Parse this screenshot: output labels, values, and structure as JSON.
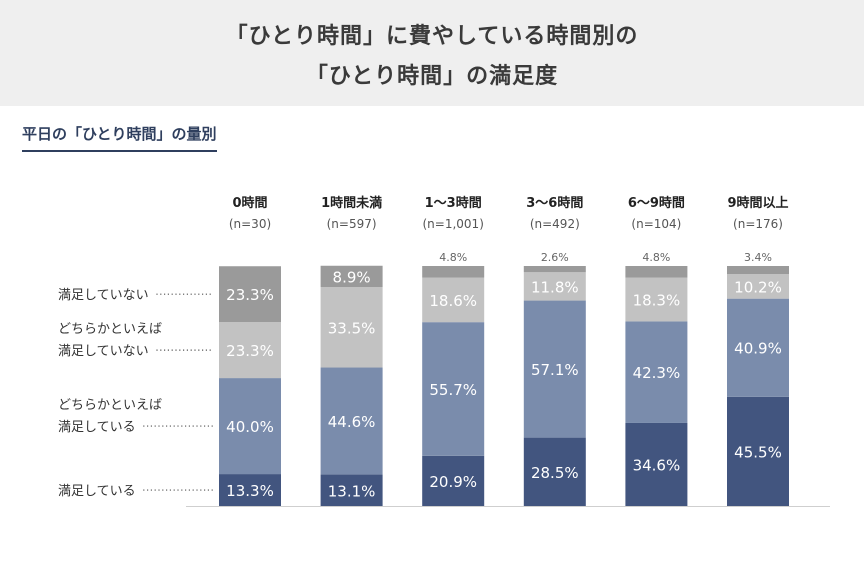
{
  "title": {
    "line1": "「ひとり時間」に費やしている時間別の",
    "line2": "「ひとり時間」の満足度"
  },
  "subtitle": "平日の「ひとり時間」の量別",
  "colors": {
    "header_bg": "#efefef",
    "not_satisfied": "#9a9a9a",
    "somewhat_not_satisfied": "#c2c2c2",
    "somewhat_satisfied": "#7a8cac",
    "satisfied": "#42557f",
    "subtitle": "#2f3f5e"
  },
  "chart_data": {
    "type": "bar",
    "stacked": true,
    "percent_scale": 100,
    "categories": [
      "0時間",
      "1時間未満",
      "1〜3時間",
      "3〜6時間",
      "6〜9時間",
      "9時間以上"
    ],
    "sample_sizes": [
      "(n=30)",
      "(n=597)",
      "(n=1,001)",
      "(n=492)",
      "(n=104)",
      "(n=176)"
    ],
    "series": [
      {
        "name": "満足している",
        "values": [
          13.3,
          13.1,
          20.9,
          28.5,
          34.6,
          45.5
        ]
      },
      {
        "name": "どちらかといえば満足している",
        "values": [
          40.0,
          44.6,
          55.7,
          57.1,
          42.3,
          40.9
        ]
      },
      {
        "name": "どちらかといえば満足していない",
        "values": [
          23.3,
          33.5,
          18.6,
          11.8,
          18.3,
          10.2
        ]
      },
      {
        "name": "満足していない",
        "values": [
          23.3,
          8.9,
          4.8,
          2.6,
          4.8,
          3.4
        ]
      }
    ],
    "series_label_lines": [
      [
        "満足している"
      ],
      [
        "どちらかといえば",
        "満足している"
      ],
      [
        "どちらかといえば",
        "満足していない"
      ],
      [
        "満足していない"
      ]
    ],
    "value_suffix": "%",
    "legend": "left"
  }
}
